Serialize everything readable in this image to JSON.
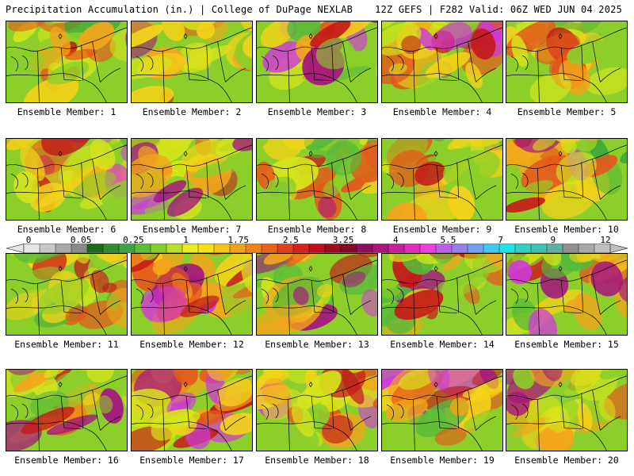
{
  "header": {
    "title_left": "Precipitation Accumulation (in.) | College of DuPage NEXLAB",
    "title_right": "12Z GEFS | F282 Valid: 06Z WED JUN 04 2025"
  },
  "members": [
    {
      "label": "Ensemble Member: 1",
      "palette": [
        "#2fa33a",
        "#56b93a",
        "#8ccf2a",
        "#d7e51c",
        "#f4d21a",
        "#f2a51c",
        "#e5561b",
        "#c41a1a",
        "#a4167f",
        "#cf3ad8"
      ],
      "level": 0.35
    },
    {
      "label": "Ensemble Member: 2",
      "palette": [
        "#2fa33a",
        "#56b93a",
        "#8ccf2a",
        "#d7e51c",
        "#f4d21a",
        "#f2a51c",
        "#e5561b",
        "#c41a1a",
        "#a4167f",
        "#cf3ad8"
      ],
      "level": 0.7
    },
    {
      "label": "Ensemble Member: 3",
      "palette": [
        "#2fa33a",
        "#56b93a",
        "#8ccf2a",
        "#d7e51c",
        "#f4d21a",
        "#f2a51c",
        "#e5561b",
        "#c41a1a",
        "#a4167f",
        "#cf3ad8"
      ],
      "level": 0.6
    },
    {
      "label": "Ensemble Member: 4",
      "palette": [
        "#2fa33a",
        "#56b93a",
        "#8ccf2a",
        "#d7e51c",
        "#f4d21a",
        "#f2a51c",
        "#e5561b",
        "#c41a1a",
        "#a4167f",
        "#cf3ad8"
      ],
      "level": 0.62
    },
    {
      "label": "Ensemble Member: 5",
      "palette": [
        "#2fa33a",
        "#56b93a",
        "#8ccf2a",
        "#d7e51c",
        "#f4d21a",
        "#f2a51c",
        "#e5561b",
        "#c41a1a",
        "#a4167f",
        "#cf3ad8"
      ],
      "level": 0.42
    },
    {
      "label": "Ensemble Member: 6",
      "palette": [
        "#2fa33a",
        "#56b93a",
        "#8ccf2a",
        "#d7e51c",
        "#f4d21a",
        "#f2a51c",
        "#e5561b",
        "#c41a1a",
        "#a4167f",
        "#cf3ad8"
      ],
      "level": 0.55
    },
    {
      "label": "Ensemble Member: 7",
      "palette": [
        "#2fa33a",
        "#56b93a",
        "#8ccf2a",
        "#d7e51c",
        "#f4d21a",
        "#f2a51c",
        "#e5561b",
        "#c41a1a",
        "#a4167f",
        "#cf3ad8"
      ],
      "level": 0.48
    },
    {
      "label": "Ensemble Member: 8",
      "palette": [
        "#2fa33a",
        "#56b93a",
        "#8ccf2a",
        "#d7e51c",
        "#f4d21a",
        "#f2a51c",
        "#e5561b",
        "#c41a1a",
        "#a4167f",
        "#cf3ad8"
      ],
      "level": 0.32
    },
    {
      "label": "Ensemble Member: 9",
      "palette": [
        "#2fa33a",
        "#56b93a",
        "#8ccf2a",
        "#d7e51c",
        "#f4d21a",
        "#f2a51c",
        "#e5561b",
        "#c41a1a",
        "#a4167f",
        "#cf3ad8"
      ],
      "level": 0.45
    },
    {
      "label": "Ensemble Member: 10",
      "palette": [
        "#2fa33a",
        "#56b93a",
        "#8ccf2a",
        "#d7e51c",
        "#f4d21a",
        "#f2a51c",
        "#e5561b",
        "#c41a1a",
        "#a4167f",
        "#cf3ad8"
      ],
      "level": 0.3
    },
    {
      "label": "Ensemble Member: 11",
      "palette": [
        "#2fa33a",
        "#56b93a",
        "#8ccf2a",
        "#d7e51c",
        "#f4d21a",
        "#f2a51c",
        "#e5561b",
        "#c41a1a",
        "#a4167f",
        "#cf3ad8"
      ],
      "level": 0.4
    },
    {
      "label": "Ensemble Member: 12",
      "palette": [
        "#2fa33a",
        "#56b93a",
        "#8ccf2a",
        "#d7e51c",
        "#f4d21a",
        "#f2a51c",
        "#e5561b",
        "#c41a1a",
        "#a4167f",
        "#cf3ad8"
      ],
      "level": 0.68
    },
    {
      "label": "Ensemble Member: 13",
      "palette": [
        "#2fa33a",
        "#56b93a",
        "#8ccf2a",
        "#d7e51c",
        "#f4d21a",
        "#f2a51c",
        "#e5561b",
        "#c41a1a",
        "#a4167f",
        "#cf3ad8"
      ],
      "level": 0.38
    },
    {
      "label": "Ensemble Member: 14",
      "palette": [
        "#2fa33a",
        "#56b93a",
        "#8ccf2a",
        "#d7e51c",
        "#f4d21a",
        "#f2a51c",
        "#e5561b",
        "#c41a1a",
        "#a4167f",
        "#cf3ad8"
      ],
      "level": 0.28
    },
    {
      "label": "Ensemble Member: 15",
      "palette": [
        "#2fa33a",
        "#56b93a",
        "#8ccf2a",
        "#d7e51c",
        "#f4d21a",
        "#f2a51c",
        "#e5561b",
        "#c41a1a",
        "#a4167f",
        "#cf3ad8"
      ],
      "level": 0.44
    },
    {
      "label": "Ensemble Member: 16",
      "palette": [
        "#2fa33a",
        "#56b93a",
        "#8ccf2a",
        "#d7e51c",
        "#f4d21a",
        "#f2a51c",
        "#e5561b",
        "#c41a1a",
        "#a4167f",
        "#cf3ad8"
      ],
      "level": 0.26
    },
    {
      "label": "Ensemble Member: 17",
      "palette": [
        "#2fa33a",
        "#56b93a",
        "#8ccf2a",
        "#d7e51c",
        "#f4d21a",
        "#f2a51c",
        "#e5561b",
        "#c41a1a",
        "#a4167f",
        "#cf3ad8"
      ],
      "level": 0.78
    },
    {
      "label": "Ensemble Member: 18",
      "palette": [
        "#2fa33a",
        "#56b93a",
        "#8ccf2a",
        "#d7e51c",
        "#f4d21a",
        "#f2a51c",
        "#e5561b",
        "#c41a1a",
        "#a4167f",
        "#cf3ad8"
      ],
      "level": 0.55
    },
    {
      "label": "Ensemble Member: 19",
      "palette": [
        "#2fa33a",
        "#56b93a",
        "#8ccf2a",
        "#d7e51c",
        "#f4d21a",
        "#f2a51c",
        "#e5561b",
        "#c41a1a",
        "#a4167f",
        "#cf3ad8"
      ],
      "level": 0.75
    },
    {
      "label": "Ensemble Member: 20",
      "palette": [
        "#2fa33a",
        "#56b93a",
        "#8ccf2a",
        "#d7e51c",
        "#f4d21a",
        "#f2a51c",
        "#e5561b",
        "#c41a1a",
        "#a4167f",
        "#cf3ad8"
      ],
      "level": 0.5
    }
  ],
  "colorbar": {
    "labels": [
      "0",
      "0.05",
      "0.25",
      "1",
      "1.75",
      "2.5",
      "3.25",
      "4",
      "5.5",
      "7",
      "9",
      "12"
    ],
    "colors": [
      "#e6e6e6",
      "#c8c8c8",
      "#a8a8a8",
      "#8a8a8a",
      "#1c6b1c",
      "#2e8b2e",
      "#3ea53e",
      "#5abf3a",
      "#86cf2a",
      "#b8e02a",
      "#e8ec20",
      "#f8e018",
      "#f6c418",
      "#f2a418",
      "#ee8418",
      "#e8641a",
      "#e2401c",
      "#d8201c",
      "#c0101c",
      "#9c0c1c",
      "#800a28",
      "#8c1060",
      "#a8167e",
      "#c8209c",
      "#e02cbc",
      "#ec40dc",
      "#c060e8",
      "#9880ec",
      "#70a0f0",
      "#40c8f0",
      "#20e0e8",
      "#30d0c8",
      "#40c0b0",
      "#60b0a0",
      "#909090",
      "#a8a8a8",
      "#c0c0c0"
    ]
  }
}
